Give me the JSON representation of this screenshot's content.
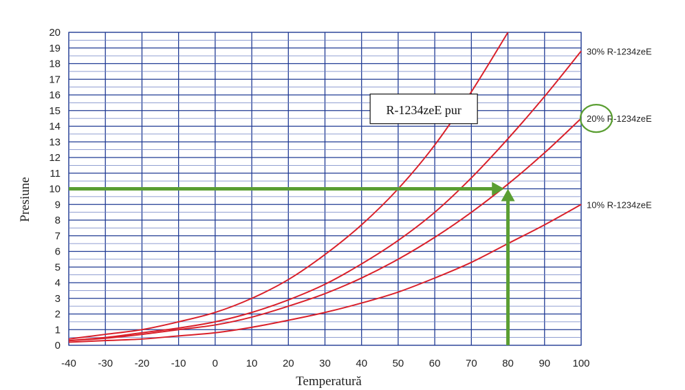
{
  "chart_data": {
    "type": "line",
    "xlabel": "Temperatură",
    "ylabel": "Presiune",
    "xlim": [
      -40,
      100
    ],
    "ylim": [
      0,
      20
    ],
    "x_ticks": [
      "-40",
      "-30",
      "-20",
      "-10",
      "0",
      "10",
      "20",
      "30",
      "40",
      "50",
      "60",
      "70",
      "80",
      "90",
      "100"
    ],
    "y_ticks": [
      "0",
      "1",
      "2",
      "3",
      "4",
      "5",
      "6",
      "7",
      "8",
      "9",
      "10",
      "11",
      "12",
      "13",
      "14",
      "15",
      "16",
      "17",
      "18",
      "19",
      "20"
    ],
    "grid": true,
    "series": [
      {
        "name": "R-1234zeE pur",
        "color": "#d9202a",
        "x": [
          -40,
          -30,
          -20,
          -10,
          0,
          10,
          20,
          30,
          40,
          50,
          60,
          70,
          80
        ],
        "y": [
          0.4,
          0.7,
          1.0,
          1.5,
          2.1,
          3.0,
          4.2,
          5.8,
          7.7,
          10.0,
          12.8,
          16.2,
          20.0
        ]
      },
      {
        "name": "30% R-1234zeE",
        "color": "#d9202a",
        "x": [
          -40,
          -30,
          -20,
          -10,
          0,
          10,
          20,
          30,
          40,
          50,
          60,
          70,
          80,
          90,
          100
        ],
        "y": [
          0.3,
          0.5,
          0.8,
          1.1,
          1.5,
          2.1,
          2.9,
          3.9,
          5.2,
          6.7,
          8.5,
          10.7,
          13.2,
          15.9,
          18.8
        ]
      },
      {
        "name": "20% R-1234zeE",
        "color": "#d9202a",
        "x": [
          -40,
          -30,
          -20,
          -10,
          0,
          10,
          20,
          30,
          40,
          50,
          60,
          70,
          80,
          90,
          100
        ],
        "y": [
          0.3,
          0.45,
          0.7,
          1.0,
          1.3,
          1.8,
          2.5,
          3.3,
          4.3,
          5.5,
          6.9,
          8.5,
          10.3,
          12.3,
          14.5
        ]
      },
      {
        "name": "10% R-1234zeE",
        "color": "#d9202a",
        "x": [
          -40,
          -30,
          -20,
          -10,
          0,
          10,
          20,
          30,
          40,
          50,
          60,
          70,
          80,
          90,
          100
        ],
        "y": [
          0.2,
          0.3,
          0.4,
          0.6,
          0.8,
          1.15,
          1.6,
          2.1,
          2.7,
          3.4,
          4.3,
          5.3,
          6.5,
          7.7,
          9.0
        ]
      }
    ],
    "annotations": [
      {
        "text": "R-1234zeE pur",
        "x": 57,
        "y": 15,
        "style": "boxed"
      }
    ],
    "highlight": {
      "color": "#5a9e32",
      "circle_label": "20% R-1234zeE",
      "horizontal_arrow": {
        "y": 10,
        "from_x": -40,
        "to_x": 79
      },
      "vertical_arrow": {
        "x": 80,
        "from_y": 0,
        "to_y": 10
      }
    }
  }
}
